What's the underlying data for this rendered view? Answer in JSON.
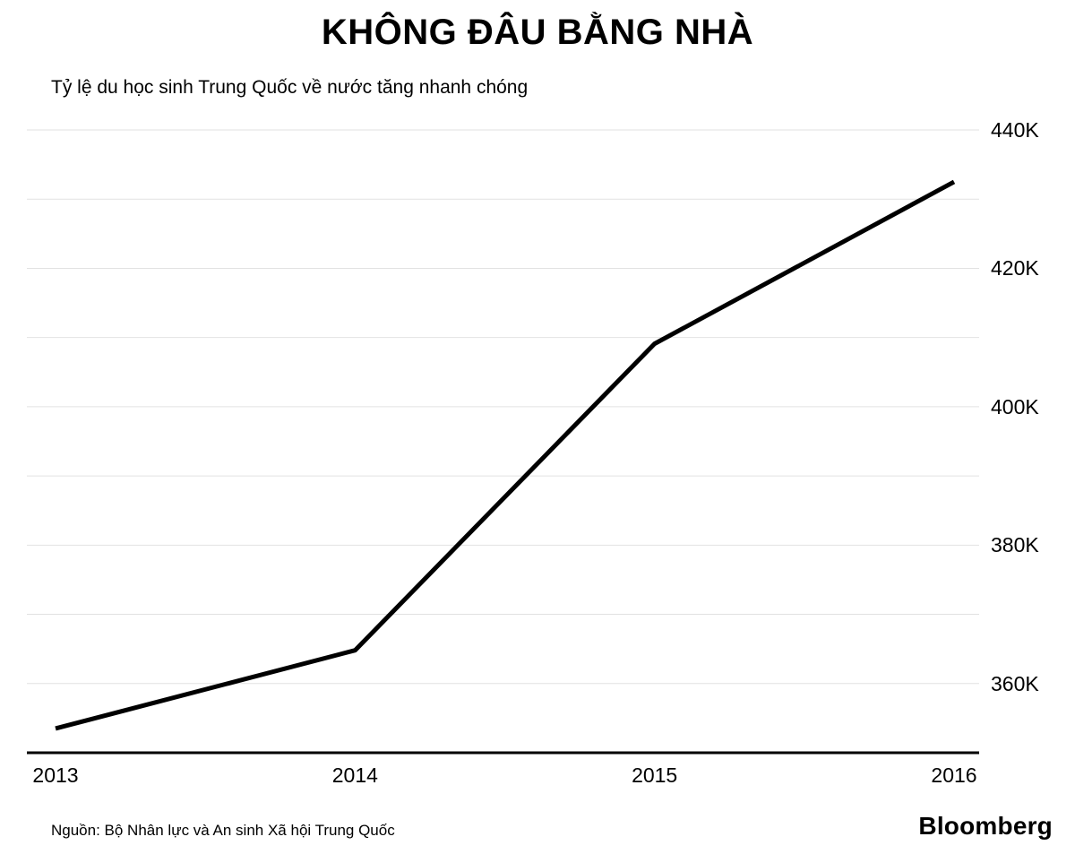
{
  "header": {
    "title": "KHÔNG ĐÂU BẰNG NHÀ",
    "subtitle": "Tỷ lệ du học sinh Trung Quốc về nước tăng nhanh chóng"
  },
  "footer": {
    "source": "Nguồn: Bộ Nhân lực và An sinh Xã hội Trung Quốc",
    "brand": "Bloomberg"
  },
  "chart_data": {
    "type": "line",
    "title": "KHÔNG ĐÂU BẰNG NHÀ",
    "subtitle": "Tỷ lệ du học sinh Trung Quốc về nước tăng nhanh chóng",
    "x": [
      "2013",
      "2014",
      "2015",
      "2016"
    ],
    "values_thousands": [
      353.5,
      364.8,
      409.1,
      432.5
    ],
    "ylim": [
      350,
      440
    ],
    "grid_step": 10,
    "yticks": [
      {
        "value": 360,
        "label": "360K"
      },
      {
        "value": 380,
        "label": "380K"
      },
      {
        "value": 400,
        "label": "400K"
      },
      {
        "value": 420,
        "label": "420K"
      },
      {
        "value": 440,
        "label": "440K"
      }
    ],
    "line_color": "#000000",
    "line_width": 5,
    "grid_color": "#e2e2e2",
    "axis_color": "#000000",
    "grid": "horizontal",
    "legend": "none",
    "ytick_side": "right",
    "xlabel": "",
    "ylabel": ""
  }
}
